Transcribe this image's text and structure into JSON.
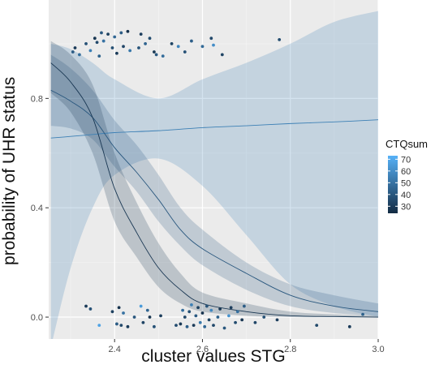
{
  "chart_data": {
    "type": "scatter",
    "xlabel": "cluster values STG",
    "ylabel": "probability of UHR status",
    "xlim": [
      2.25,
      3.0
    ],
    "ylim": [
      -0.08,
      1.16
    ],
    "xticks": [
      "2.4",
      "2.6",
      "2.8",
      "3.0"
    ],
    "yticks": [
      "0.0",
      "0.4",
      "0.8"
    ],
    "grid": true,
    "legend": {
      "title": "CTQsum",
      "placement": "right",
      "labels": [
        "70",
        "60",
        "50",
        "40",
        "30"
      ],
      "values": [
        70,
        60,
        50,
        40,
        30
      ],
      "range": [
        24,
        73
      ],
      "low_color": "#132b43",
      "high_color": "#56b1f7"
    },
    "fit_lines": [
      {
        "ctq": 55,
        "x": [
          2.255,
          2.3,
          2.35,
          2.4,
          2.5,
          2.6,
          2.7,
          2.8,
          2.9,
          3.0
        ],
        "y": [
          0.655,
          0.661,
          0.668,
          0.675,
          0.682,
          0.693,
          0.7,
          0.708,
          0.714,
          0.722
        ],
        "lower": [
          -0.11,
          0.18,
          0.4,
          0.52,
          0.58,
          0.48,
          0.3,
          0.12,
          0.04,
          0.0
        ],
        "upper": [
          1.0,
          0.98,
          0.93,
          0.87,
          0.8,
          0.87,
          0.93,
          1.0,
          1.08,
          1.12
        ]
      },
      {
        "ctq": 40,
        "x": [
          2.255,
          2.3,
          2.35,
          2.4,
          2.45,
          2.5,
          2.55,
          2.6,
          2.7,
          2.8,
          2.9,
          3.0
        ],
        "y": [
          0.83,
          0.79,
          0.73,
          0.62,
          0.53,
          0.43,
          0.32,
          0.25,
          0.16,
          0.08,
          0.04,
          0.02
        ],
        "lower": [
          0.7,
          0.69,
          0.65,
          0.55,
          0.46,
          0.35,
          0.26,
          0.19,
          0.1,
          0.04,
          0.015,
          0.005
        ],
        "upper": [
          0.96,
          0.91,
          0.83,
          0.72,
          0.63,
          0.52,
          0.4,
          0.32,
          0.2,
          0.12,
          0.08,
          0.05
        ]
      },
      {
        "ctq": 28,
        "x": [
          2.255,
          2.3,
          2.35,
          2.4,
          2.45,
          2.5,
          2.55,
          2.6,
          2.7,
          2.8,
          2.9,
          3.0
        ],
        "y": [
          0.93,
          0.86,
          0.73,
          0.47,
          0.31,
          0.18,
          0.1,
          0.05,
          0.02,
          0.005,
          0.002,
          0.0
        ],
        "lower": [
          0.82,
          0.75,
          0.6,
          0.35,
          0.22,
          0.11,
          0.05,
          0.02,
          0.005,
          0.0,
          0.0,
          0.0
        ],
        "upper": [
          1.01,
          0.96,
          0.85,
          0.6,
          0.42,
          0.27,
          0.16,
          0.09,
          0.05,
          0.02,
          0.01,
          0.005
        ]
      }
    ],
    "points": [
      {
        "x": 2.305,
        "y": 0.97,
        "ctq": 42
      },
      {
        "x": 2.31,
        "y": 0.985,
        "ctq": 30
      },
      {
        "x": 2.32,
        "y": 0.96,
        "ctq": 48
      },
      {
        "x": 2.335,
        "y": 1.0,
        "ctq": 38
      },
      {
        "x": 2.345,
        "y": 0.975,
        "ctq": 55
      },
      {
        "x": 2.355,
        "y": 1.02,
        "ctq": 28
      },
      {
        "x": 2.36,
        "y": 1.005,
        "ctq": 35
      },
      {
        "x": 2.365,
        "y": 0.955,
        "ctq": 44
      },
      {
        "x": 2.37,
        "y": 1.04,
        "ctq": 40
      },
      {
        "x": 2.375,
        "y": 1.01,
        "ctq": 50
      },
      {
        "x": 2.385,
        "y": 1.035,
        "ctq": 32
      },
      {
        "x": 2.395,
        "y": 0.985,
        "ctq": 37
      },
      {
        "x": 2.4,
        "y": 1.025,
        "ctq": 46
      },
      {
        "x": 2.405,
        "y": 0.965,
        "ctq": 30
      },
      {
        "x": 2.415,
        "y": 1.04,
        "ctq": 42
      },
      {
        "x": 2.42,
        "y": 0.99,
        "ctq": 34
      },
      {
        "x": 2.43,
        "y": 1.045,
        "ctq": 27
      },
      {
        "x": 2.435,
        "y": 0.975,
        "ctq": 52
      },
      {
        "x": 2.455,
        "y": 0.985,
        "ctq": 39
      },
      {
        "x": 2.46,
        "y": 1.035,
        "ctq": 31
      },
      {
        "x": 2.47,
        "y": 1.0,
        "ctq": 45
      },
      {
        "x": 2.48,
        "y": 1.02,
        "ctq": 36
      },
      {
        "x": 2.49,
        "y": 0.97,
        "ctq": 29
      },
      {
        "x": 2.495,
        "y": 0.96,
        "ctq": 41
      },
      {
        "x": 2.51,
        "y": 0.955,
        "ctq": 48
      },
      {
        "x": 2.53,
        "y": 1.0,
        "ctq": 33
      },
      {
        "x": 2.545,
        "y": 0.99,
        "ctq": 57
      },
      {
        "x": 2.56,
        "y": 0.97,
        "ctq": 38
      },
      {
        "x": 2.575,
        "y": 1.01,
        "ctq": 43
      },
      {
        "x": 2.6,
        "y": 0.99,
        "ctq": 47
      },
      {
        "x": 2.62,
        "y": 1.02,
        "ctq": 35
      },
      {
        "x": 2.625,
        "y": 0.995,
        "ctq": 60
      },
      {
        "x": 2.645,
        "y": 0.96,
        "ctq": 33
      },
      {
        "x": 2.775,
        "y": 1.015,
        "ctq": 36
      },
      {
        "x": 2.335,
        "y": 0.04,
        "ctq": 30
      },
      {
        "x": 2.345,
        "y": 0.03,
        "ctq": 38
      },
      {
        "x": 2.365,
        "y": -0.03,
        "ctq": 68
      },
      {
        "x": 2.395,
        "y": 0.02,
        "ctq": 32
      },
      {
        "x": 2.405,
        "y": -0.025,
        "ctq": 42
      },
      {
        "x": 2.41,
        "y": 0.035,
        "ctq": 27
      },
      {
        "x": 2.415,
        "y": -0.03,
        "ctq": 35
      },
      {
        "x": 2.42,
        "y": 0.015,
        "ctq": 50
      },
      {
        "x": 2.43,
        "y": -0.035,
        "ctq": 30
      },
      {
        "x": 2.445,
        "y": 0.0,
        "ctq": 40
      },
      {
        "x": 2.46,
        "y": 0.04,
        "ctq": 65
      },
      {
        "x": 2.465,
        "y": -0.02,
        "ctq": 33
      },
      {
        "x": 2.475,
        "y": 0.025,
        "ctq": 45
      },
      {
        "x": 2.48,
        "y": 0.0,
        "ctq": 28
      },
      {
        "x": 2.49,
        "y": -0.035,
        "ctq": 38
      },
      {
        "x": 2.505,
        "y": 0.005,
        "ctq": 31
      },
      {
        "x": 2.54,
        "y": -0.03,
        "ctq": 36
      },
      {
        "x": 2.55,
        "y": -0.025,
        "ctq": 29
      },
      {
        "x": 2.555,
        "y": 0.025,
        "ctq": 48
      },
      {
        "x": 2.56,
        "y": 0.0,
        "ctq": 34
      },
      {
        "x": 2.565,
        "y": -0.035,
        "ctq": 43
      },
      {
        "x": 2.57,
        "y": 0.02,
        "ctq": 37
      },
      {
        "x": 2.575,
        "y": 0.045,
        "ctq": 55
      },
      {
        "x": 2.58,
        "y": -0.03,
        "ctq": 30
      },
      {
        "x": 2.585,
        "y": 0.005,
        "ctq": 41
      },
      {
        "x": 2.59,
        "y": 0.035,
        "ctq": 32
      },
      {
        "x": 2.595,
        "y": -0.02,
        "ctq": 52
      },
      {
        "x": 2.6,
        "y": 0.015,
        "ctq": 27
      },
      {
        "x": 2.605,
        "y": -0.035,
        "ctq": 46
      },
      {
        "x": 2.61,
        "y": 0.04,
        "ctq": 39
      },
      {
        "x": 2.615,
        "y": -0.01,
        "ctq": 33
      },
      {
        "x": 2.62,
        "y": 0.025,
        "ctq": 58
      },
      {
        "x": 2.625,
        "y": -0.03,
        "ctq": 35
      },
      {
        "x": 2.635,
        "y": 0.0,
        "ctq": 44
      },
      {
        "x": 2.64,
        "y": 0.03,
        "ctq": 29
      },
      {
        "x": 2.65,
        "y": -0.04,
        "ctq": 40
      },
      {
        "x": 2.66,
        "y": 0.005,
        "ctq": 62
      },
      {
        "x": 2.665,
        "y": 0.035,
        "ctq": 31
      },
      {
        "x": 2.675,
        "y": -0.02,
        "ctq": 36
      },
      {
        "x": 2.68,
        "y": 0.02,
        "ctq": 49
      },
      {
        "x": 2.69,
        "y": -0.01,
        "ctq": 28
      },
      {
        "x": 2.695,
        "y": 0.04,
        "ctq": 42
      },
      {
        "x": 2.72,
        "y": -0.02,
        "ctq": 34
      },
      {
        "x": 2.74,
        "y": 0.0,
        "ctq": 38
      },
      {
        "x": 2.77,
        "y": -0.01,
        "ctq": 31
      },
      {
        "x": 2.86,
        "y": -0.03,
        "ctq": 35
      },
      {
        "x": 2.935,
        "y": -0.035,
        "ctq": 30
      },
      {
        "x": 2.965,
        "y": 0.01,
        "ctq": 44
      }
    ]
  }
}
